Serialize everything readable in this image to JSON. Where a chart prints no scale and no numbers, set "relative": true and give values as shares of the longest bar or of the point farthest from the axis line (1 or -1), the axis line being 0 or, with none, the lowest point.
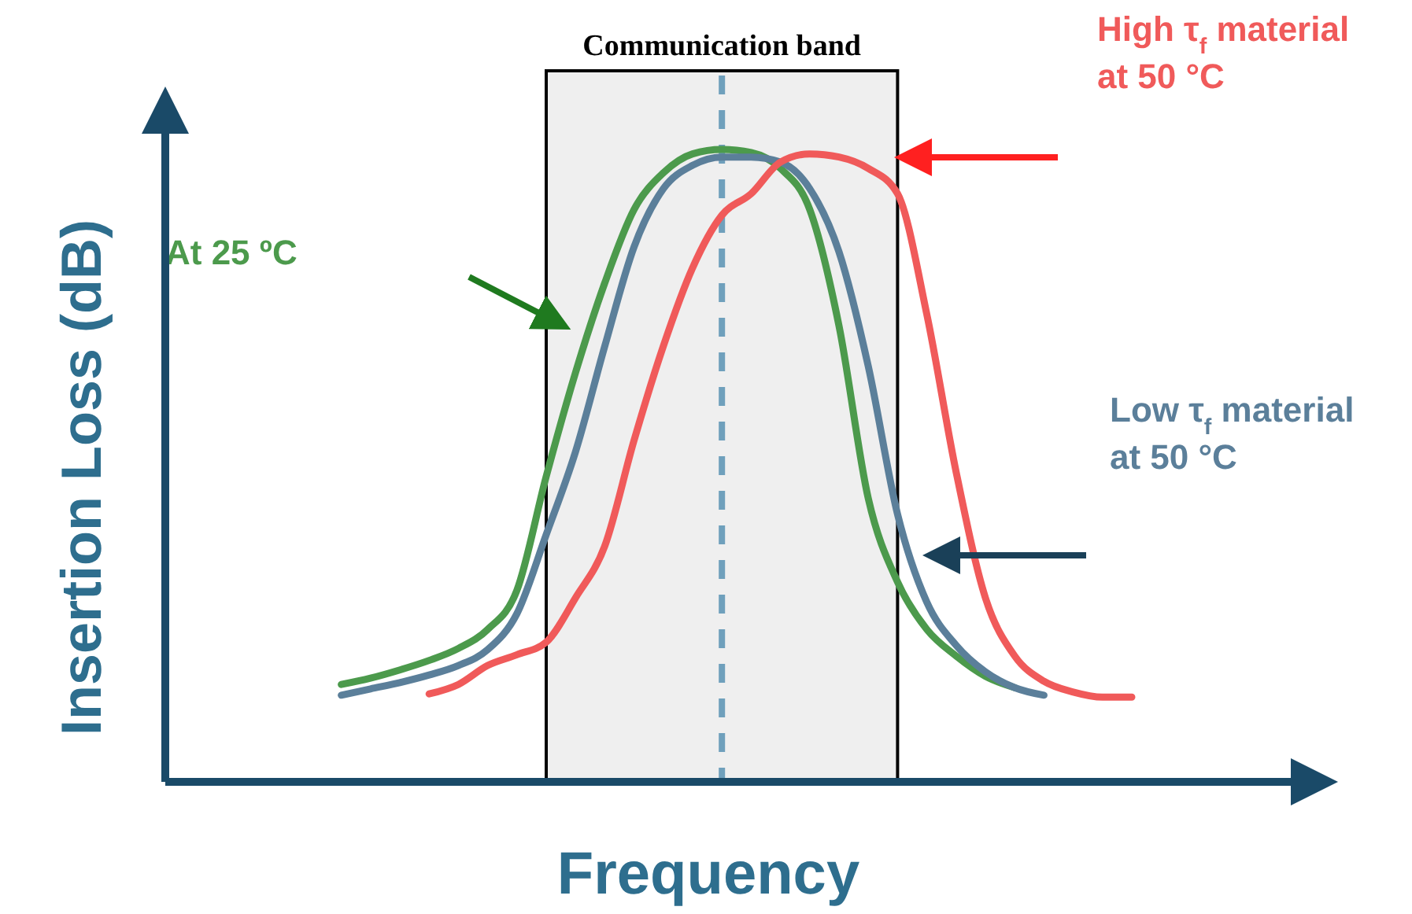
{
  "chart_data": {
    "type": "line",
    "relative": true,
    "xlabel": "Frequency",
    "ylabel": "Insertion Loss (dB)",
    "legend": false,
    "marker": "none",
    "line_style": "solid",
    "categories": [
      null,
      null,
      null,
      null,
      null,
      null,
      null,
      null,
      null,
      null,
      null,
      null,
      null,
      null,
      null,
      null,
      null,
      null,
      null,
      null,
      null,
      null,
      null,
      null,
      null,
      null,
      null,
      null
    ],
    "series": [
      {
        "name": "At 25 ºC",
        "color": "#4c9a4c",
        "values": [
          0.154,
          0.164,
          0.177,
          0.192,
          0.211,
          0.241,
          0.303,
          0.483,
          0.647,
          0.789,
          0.905,
          0.963,
          0.993,
          1.0,
          0.995,
          0.97,
          0.905,
          0.721,
          0.448,
          0.316,
          0.241,
          0.199,
          0.167,
          0.149,
          null,
          null,
          null,
          null
        ]
      },
      {
        "name": "Low τ$_{f}$ material\nat 50 °C",
        "color": "#5b7f9a",
        "values": [
          0.137,
          0.147,
          0.157,
          0.169,
          0.184,
          0.209,
          0.266,
          0.391,
          0.522,
          0.689,
          0.846,
          0.938,
          0.975,
          0.988,
          0.988,
          0.98,
          0.938,
          0.838,
          0.657,
          0.423,
          0.284,
          0.216,
          0.174,
          0.149,
          0.137,
          null,
          null,
          null
        ]
      },
      {
        "name": "High τ$_{f}$ material\nat 50 °C",
        "color": "#f05a5a",
        "values": [
          null,
          null,
          null,
          0.139,
          0.154,
          0.184,
          0.201,
          0.221,
          0.291,
          0.373,
          0.54,
          0.689,
          0.813,
          0.896,
          0.93,
          0.98,
          0.993,
          0.988,
          0.97,
          0.93,
          0.739,
          0.49,
          0.291,
          0.199,
          0.159,
          0.142,
          0.134,
          0.134
        ]
      }
    ],
    "annotations": [
      "Communication band"
    ]
  }
}
